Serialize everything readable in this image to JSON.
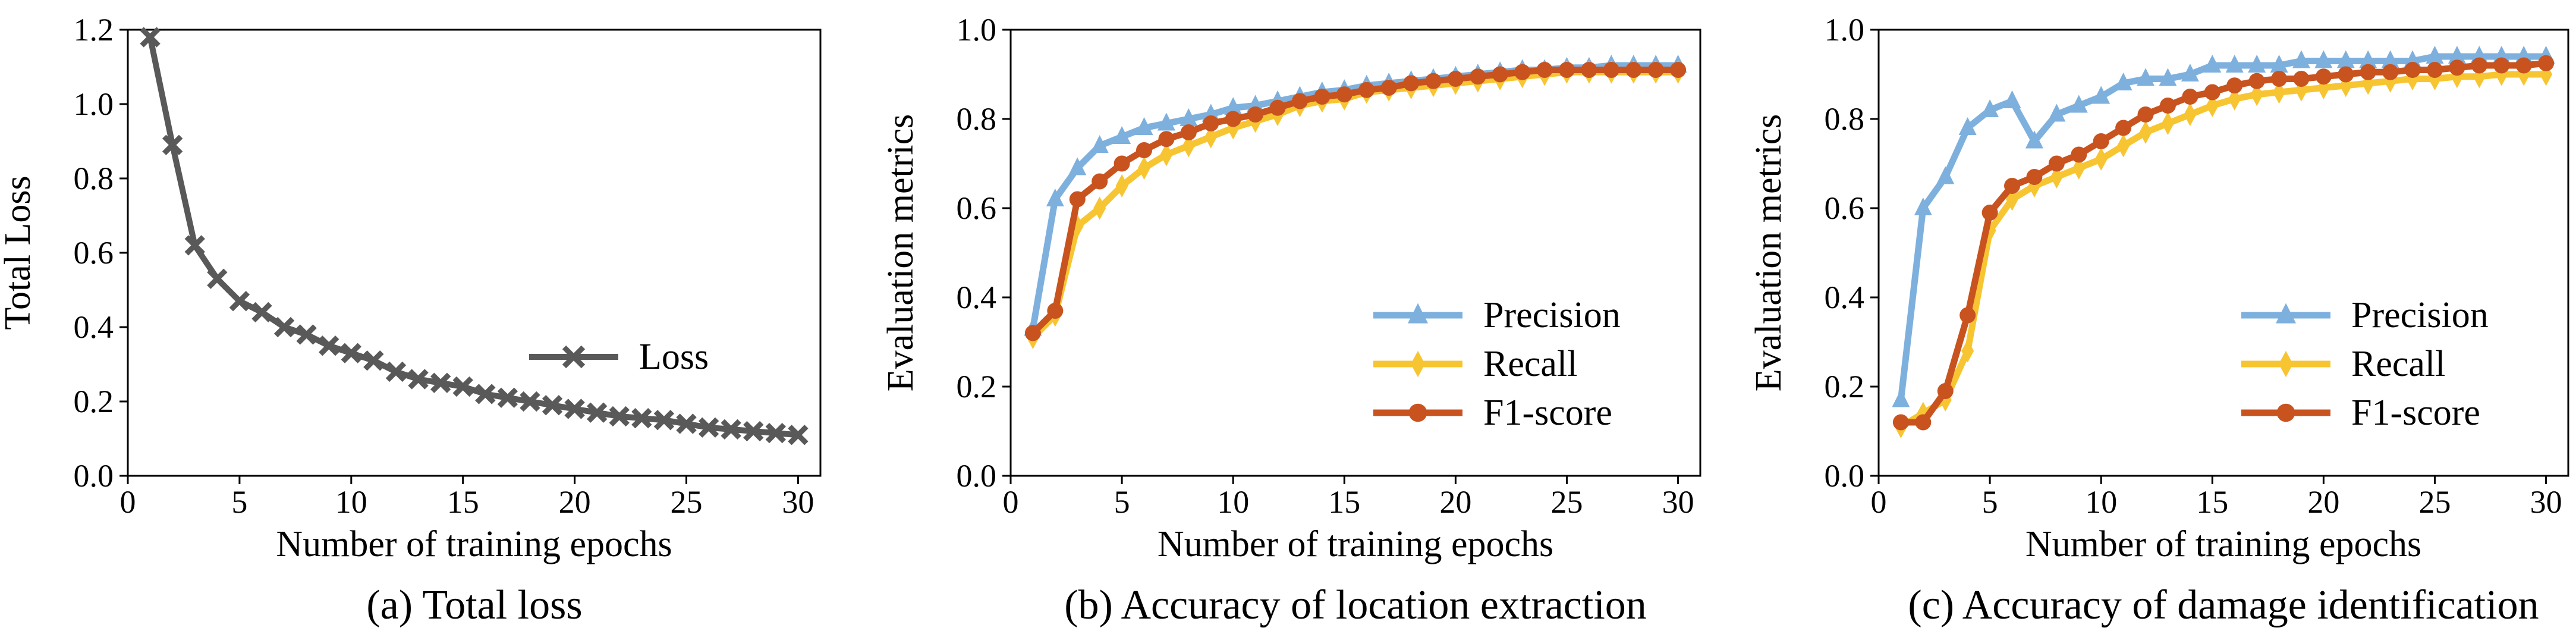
{
  "chart_data": [
    {
      "type": "line",
      "caption": "(a) Total loss",
      "xlabel": "Number of training epochs",
      "ylabel": "Total Loss",
      "xlim": [
        0,
        31
      ],
      "ylim": [
        0,
        1.2
      ],
      "xticks": [
        0,
        5,
        10,
        15,
        20,
        25,
        30
      ],
      "yticks": [
        0.0,
        0.2,
        0.4,
        0.6,
        0.8,
        1.0,
        1.2
      ],
      "ytick_labels": [
        "0.0",
        "0.2",
        "0.4",
        "0.6",
        "0.8",
        "1.0",
        "1.2"
      ],
      "legend_position": "center-right",
      "x": [
        1,
        2,
        3,
        4,
        5,
        6,
        7,
        8,
        9,
        10,
        11,
        12,
        13,
        14,
        15,
        16,
        17,
        18,
        19,
        20,
        21,
        22,
        23,
        24,
        25,
        26,
        27,
        28,
        29,
        30
      ],
      "series": [
        {
          "name": "Loss",
          "color": "#595959",
          "marker": "x",
          "values": [
            1.18,
            0.89,
            0.62,
            0.53,
            0.47,
            0.44,
            0.4,
            0.38,
            0.35,
            0.33,
            0.31,
            0.28,
            0.26,
            0.25,
            0.24,
            0.22,
            0.21,
            0.2,
            0.19,
            0.18,
            0.17,
            0.16,
            0.155,
            0.15,
            0.14,
            0.13,
            0.125,
            0.12,
            0.115,
            0.11
          ]
        }
      ]
    },
    {
      "type": "line",
      "caption": "(b) Accuracy of location extraction",
      "xlabel": "Number of training epochs",
      "ylabel": "Evaluation metrics",
      "xlim": [
        0,
        31
      ],
      "ylim": [
        0,
        1.0
      ],
      "xticks": [
        0,
        5,
        10,
        15,
        20,
        25,
        30
      ],
      "yticks": [
        0.0,
        0.2,
        0.4,
        0.6,
        0.8,
        1.0
      ],
      "ytick_labels": [
        "0.0",
        "0.2",
        "0.4",
        "0.6",
        "0.8",
        "1.0"
      ],
      "legend_position": "lower-right",
      "x": [
        1,
        2,
        3,
        4,
        5,
        6,
        7,
        8,
        9,
        10,
        11,
        12,
        13,
        14,
        15,
        16,
        17,
        18,
        19,
        20,
        21,
        22,
        23,
        24,
        25,
        26,
        27,
        28,
        29,
        30
      ],
      "series": [
        {
          "name": "Precision",
          "color": "#7EB0DE",
          "marker": "triangle",
          "values": [
            0.33,
            0.62,
            0.69,
            0.74,
            0.76,
            0.78,
            0.79,
            0.8,
            0.81,
            0.825,
            0.83,
            0.84,
            0.85,
            0.86,
            0.865,
            0.875,
            0.88,
            0.885,
            0.89,
            0.895,
            0.9,
            0.905,
            0.91,
            0.91,
            0.915,
            0.915,
            0.92,
            0.92,
            0.92,
            0.92
          ]
        },
        {
          "name": "Recall",
          "color": "#F7C531",
          "marker": "diamond",
          "values": [
            0.31,
            0.36,
            0.56,
            0.6,
            0.65,
            0.69,
            0.72,
            0.74,
            0.76,
            0.78,
            0.795,
            0.81,
            0.83,
            0.84,
            0.845,
            0.86,
            0.865,
            0.87,
            0.875,
            0.88,
            0.885,
            0.89,
            0.895,
            0.9,
            0.905,
            0.905,
            0.905,
            0.905,
            0.905,
            0.905
          ]
        },
        {
          "name": "F1-score",
          "color": "#C8531F",
          "marker": "circle",
          "values": [
            0.32,
            0.37,
            0.62,
            0.66,
            0.7,
            0.73,
            0.755,
            0.77,
            0.79,
            0.8,
            0.81,
            0.825,
            0.84,
            0.85,
            0.855,
            0.865,
            0.87,
            0.88,
            0.885,
            0.89,
            0.895,
            0.9,
            0.905,
            0.91,
            0.91,
            0.91,
            0.91,
            0.91,
            0.91,
            0.91
          ]
        }
      ]
    },
    {
      "type": "line",
      "caption": "(c) Accuracy of damage identification",
      "xlabel": "Number of training epochs",
      "ylabel": "Evaluation metrics",
      "xlim": [
        0,
        31
      ],
      "ylim": [
        0,
        1.0
      ],
      "xticks": [
        0,
        5,
        10,
        15,
        20,
        25,
        30
      ],
      "yticks": [
        0.0,
        0.2,
        0.4,
        0.6,
        0.8,
        1.0
      ],
      "ytick_labels": [
        "0.0",
        "0.2",
        "0.4",
        "0.6",
        "0.8",
        "1.0"
      ],
      "legend_position": "lower-right",
      "x": [
        1,
        2,
        3,
        4,
        5,
        6,
        7,
        8,
        9,
        10,
        11,
        12,
        13,
        14,
        15,
        16,
        17,
        18,
        19,
        20,
        21,
        22,
        23,
        24,
        25,
        26,
        27,
        28,
        29,
        30
      ],
      "series": [
        {
          "name": "Precision",
          "color": "#7EB0DE",
          "marker": "triangle",
          "values": [
            0.17,
            0.6,
            0.67,
            0.78,
            0.82,
            0.84,
            0.75,
            0.81,
            0.83,
            0.85,
            0.88,
            0.89,
            0.89,
            0.9,
            0.92,
            0.92,
            0.92,
            0.92,
            0.93,
            0.93,
            0.93,
            0.93,
            0.93,
            0.93,
            0.94,
            0.94,
            0.94,
            0.94,
            0.94,
            0.94
          ]
        },
        {
          "name": "Recall",
          "color": "#F7C531",
          "marker": "diamond",
          "values": [
            0.11,
            0.14,
            0.17,
            0.28,
            0.55,
            0.62,
            0.65,
            0.67,
            0.69,
            0.71,
            0.74,
            0.77,
            0.79,
            0.81,
            0.83,
            0.845,
            0.855,
            0.86,
            0.865,
            0.87,
            0.875,
            0.88,
            0.885,
            0.89,
            0.89,
            0.895,
            0.895,
            0.9,
            0.9,
            0.9
          ]
        },
        {
          "name": "F1-score",
          "color": "#C8531F",
          "marker": "circle",
          "values": [
            0.12,
            0.12,
            0.19,
            0.36,
            0.59,
            0.65,
            0.67,
            0.7,
            0.72,
            0.75,
            0.78,
            0.81,
            0.83,
            0.85,
            0.86,
            0.875,
            0.885,
            0.89,
            0.89,
            0.895,
            0.9,
            0.905,
            0.905,
            0.91,
            0.91,
            0.915,
            0.92,
            0.92,
            0.92,
            0.925
          ]
        }
      ]
    }
  ]
}
